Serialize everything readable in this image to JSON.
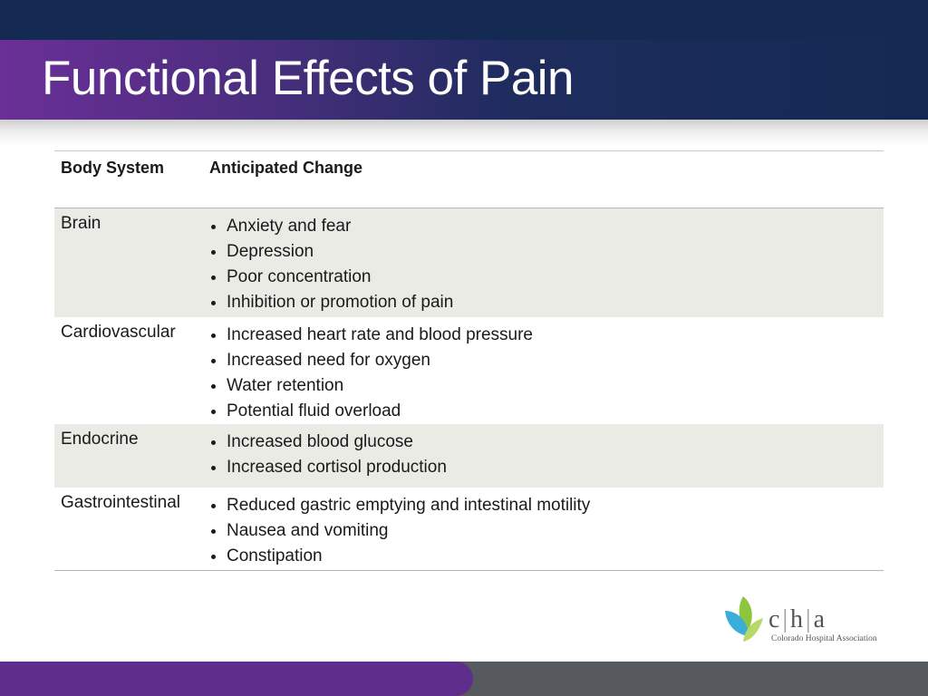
{
  "slide": {
    "title": "Functional Effects of Pain"
  },
  "table": {
    "header": {
      "body_system": "Body System",
      "anticipated_change": "Anticipated Change"
    },
    "rows": [
      {
        "system": "Brain",
        "changes": [
          "Anxiety and fear",
          "Depression",
          "Poor concentration",
          "Inhibition or promotion of pain"
        ]
      },
      {
        "system": "Cardiovascular",
        "changes": [
          "Increased heart rate and blood pressure",
          "Increased need for oxygen",
          "Water retention",
          "Potential fluid overload"
        ]
      },
      {
        "system": "Endocrine",
        "changes": [
          "Increased blood glucose",
          "Increased cortisol production"
        ]
      },
      {
        "system": "Gastrointestinal",
        "changes": [
          "Reduced gastric emptying and intestinal motility",
          "Nausea and vomiting",
          "Constipation"
        ]
      }
    ]
  },
  "logo": {
    "letters": [
      "c",
      "h",
      "a"
    ],
    "organization": "Colorado Hospital Association"
  },
  "colors": {
    "title_bar_dark": "#142a52",
    "title_bar_purple": "#6b2f97",
    "row_shade": "#ebebe6",
    "footer_purple": "#5f2d8c",
    "footer_gray": "#565a5e"
  }
}
